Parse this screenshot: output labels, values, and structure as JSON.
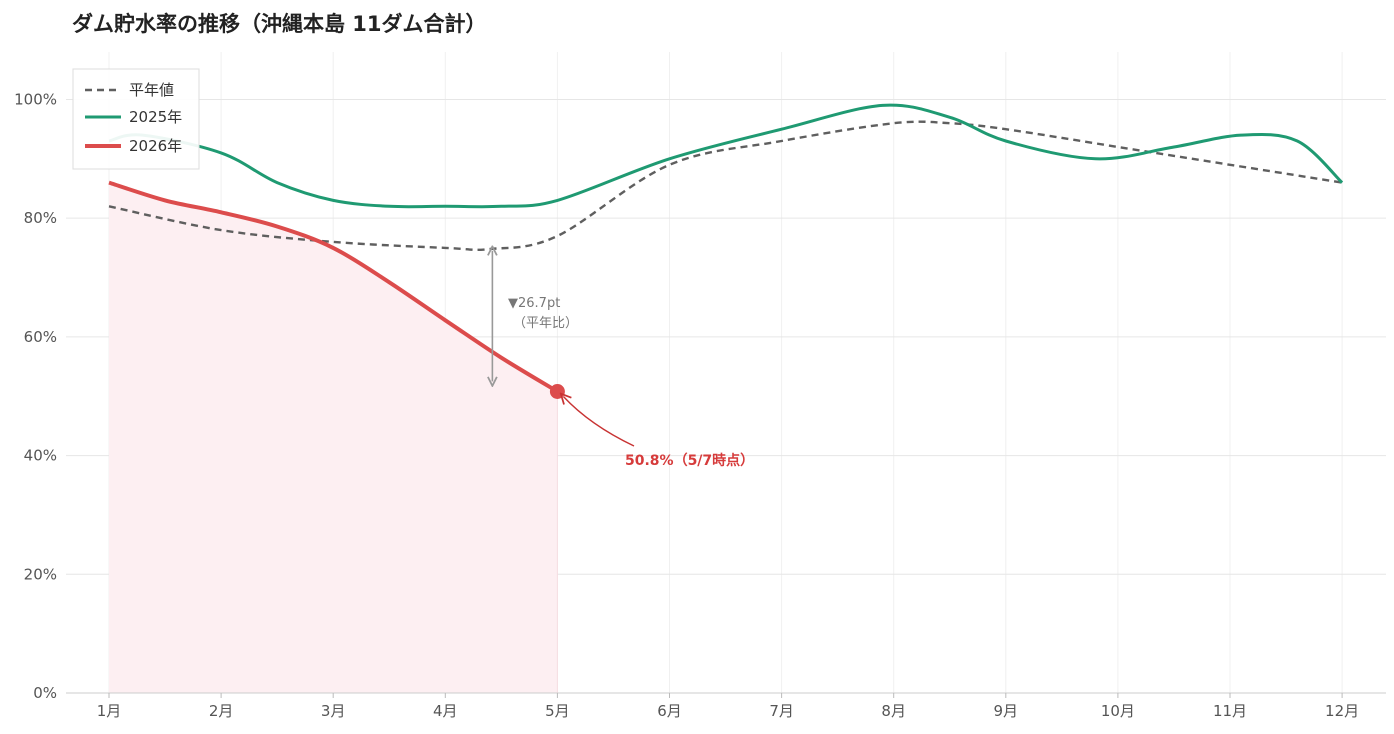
{
  "chart_data": {
    "type": "line",
    "title": "ダム貯水率の推移（沖縄本島 11ダム合計）",
    "xlabel": "",
    "ylabel": "",
    "categories": [
      "1月",
      "2月",
      "3月",
      "4月",
      "5月",
      "6月",
      "7月",
      "8月",
      "9月",
      "10月",
      "11月",
      "12月"
    ],
    "ylim": [
      0,
      108
    ],
    "yticks": [
      0,
      20,
      40,
      60,
      80,
      100
    ],
    "ytick_labels": [
      "0%",
      "20%",
      "40%",
      "60%",
      "80%",
      "100%"
    ],
    "grid": true,
    "legend_position": "top-left",
    "series": [
      {
        "name": "平年値",
        "style": "dashed",
        "color": "#5f5f5f",
        "points": [
          [
            1,
            82
          ],
          [
            2,
            78
          ],
          [
            3,
            76
          ],
          [
            4,
            75
          ],
          [
            4.4,
            74.8
          ],
          [
            5,
            77
          ],
          [
            6,
            89
          ],
          [
            7,
            93
          ],
          [
            8,
            96
          ],
          [
            8.5,
            96
          ],
          [
            9,
            95
          ],
          [
            10,
            92
          ],
          [
            11,
            89
          ],
          [
            12,
            86
          ]
        ]
      },
      {
        "name": "2025年",
        "style": "solid",
        "color": "#1f9a72",
        "points": [
          [
            1,
            93
          ],
          [
            1.3,
            94
          ],
          [
            2,
            91
          ],
          [
            2.5,
            86
          ],
          [
            3,
            83
          ],
          [
            3.5,
            82
          ],
          [
            4,
            82
          ],
          [
            4.5,
            82
          ],
          [
            5,
            83
          ],
          [
            6,
            90
          ],
          [
            7,
            95
          ],
          [
            7.9,
            99
          ],
          [
            8.5,
            97
          ],
          [
            9,
            93
          ],
          [
            9.8,
            90
          ],
          [
            10.5,
            92
          ],
          [
            11.1,
            94
          ],
          [
            11.6,
            93
          ],
          [
            12,
            86
          ]
        ]
      },
      {
        "name": "2026年",
        "style": "solid",
        "color": "#dc4c4c",
        "fill": "#fdeff2",
        "points": [
          [
            1,
            86
          ],
          [
            1.5,
            83
          ],
          [
            2,
            81
          ],
          [
            2.5,
            78.6
          ],
          [
            3,
            75
          ],
          [
            3.5,
            69.2
          ],
          [
            4,
            62.8
          ],
          [
            4.5,
            56.5
          ],
          [
            5,
            50.8
          ]
        ]
      }
    ],
    "annotations": {
      "gap_arrow": {
        "x": 4.42,
        "from": 75,
        "to": 52
      },
      "gap_label_line1": "▼26.7pt",
      "gap_label_line2": "（平年比）",
      "callout_point": {
        "x": 5,
        "y": 50.8
      },
      "callout_label": "50.8%（5/7時点）"
    }
  }
}
